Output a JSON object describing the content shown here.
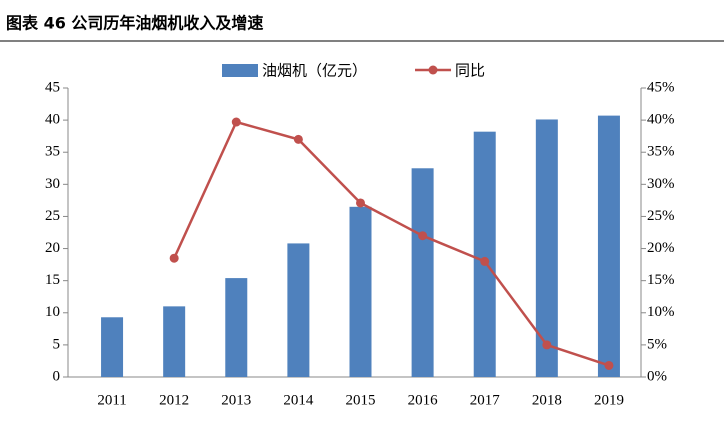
{
  "chart_data": {
    "type": "bar-line",
    "title": "图表 46 公司历年油烟机收入及增速",
    "categories": [
      "2011",
      "2012",
      "2013",
      "2014",
      "2015",
      "2016",
      "2017",
      "2018",
      "2019"
    ],
    "series": [
      {
        "name": "油烟机（亿元）",
        "color": "#4f81bd",
        "type": "bar",
        "values": [
          9.3,
          11,
          15.4,
          20.8,
          26.5,
          32.5,
          38.2,
          40.1,
          40.7
        ]
      },
      {
        "name": "同比",
        "color": "#c0504d",
        "type": "line",
        "axis": "y2",
        "values": [
          null,
          18.5,
          39.7,
          37,
          27.1,
          22,
          18,
          5,
          1.8
        ]
      }
    ],
    "ylim": [
      0,
      45
    ],
    "yticks": [
      0,
      5,
      10,
      15,
      20,
      25,
      30,
      35,
      40,
      45
    ],
    "y2lim": [
      0,
      45
    ],
    "y2ticks": [
      {
        "value": 0,
        "label": "0%"
      },
      {
        "value": 5,
        "label": "5%"
      },
      {
        "value": 10,
        "label": "10%"
      },
      {
        "value": 15,
        "label": "15%"
      },
      {
        "value": 20,
        "label": "20%"
      },
      {
        "value": 25,
        "label": "25%"
      },
      {
        "value": 30,
        "label": "30%"
      },
      {
        "value": 35,
        "label": "35%"
      },
      {
        "value": 40,
        "label": "40%"
      },
      {
        "value": 45,
        "label": "45%"
      }
    ],
    "legend": "top"
  }
}
